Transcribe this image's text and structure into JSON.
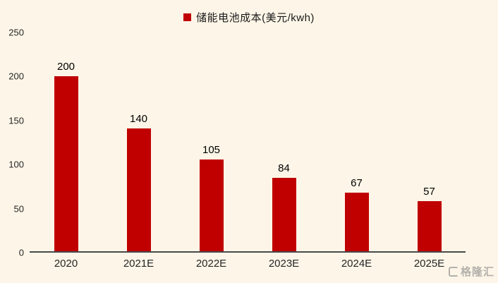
{
  "chart_data": {
    "type": "bar",
    "title": "储能电池成本(美元/kwh)",
    "categories": [
      "2020",
      "2021E",
      "2022E",
      "2023E",
      "2024E",
      "2025E"
    ],
    "values": [
      200,
      140,
      105,
      84,
      67,
      57
    ],
    "ylim": [
      0,
      250
    ],
    "yticks": [
      0,
      50,
      100,
      150,
      200,
      250
    ],
    "grid": false,
    "legend_position": "top-center",
    "bar_color": "#c00000",
    "background_color": "#fdf6e8",
    "xlabel": "",
    "ylabel": ""
  },
  "legend": {
    "label": "储能电池成本(美元/kwh)"
  },
  "watermark": {
    "text": "格隆汇"
  }
}
